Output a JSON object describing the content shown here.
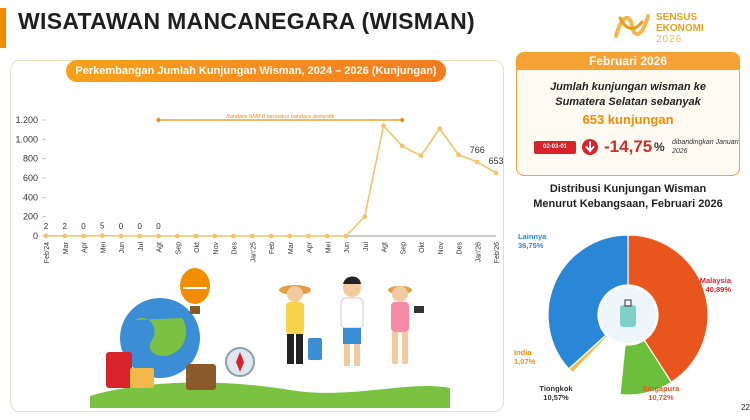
{
  "page": {
    "title": "WISATAWAN MANCANEGARA (WISMAN)",
    "page_number": "22"
  },
  "logo": {
    "line1": "SENSUS",
    "line2": "EKONOMI",
    "line3": "2026"
  },
  "colors": {
    "accent": "#f28c00",
    "line": "#f2c46b",
    "pie_malaysia": "#e8561e",
    "pie_singapura": "#6bbf3a",
    "pie_tiongkok": "#ffffff",
    "pie_india": "#f7b84a",
    "pie_lainnya": "#2a86d6",
    "decline": "#d8232a"
  },
  "summary": {
    "period": "Februari 2026",
    "text_line1": "Jumlah kunjungan wisman ke",
    "text_line2": "Sumatera Selatan sebanyak",
    "value": "653 kunjungan",
    "compare_date_label": "02-03-01",
    "change": "-14,75",
    "change_unit": "%",
    "compare_note": "dibandingkan Januari 2026",
    "icon": "arrow-down-icon"
  },
  "chart_data": [
    {
      "type": "line",
      "title": "Perkembangan Jumlah Kunjungan Wisman, 2024 – 2026 (Kunjungan)",
      "x": [
        "Feb'24",
        "Mar",
        "Apr",
        "Mei",
        "Jun",
        "Jul",
        "Agt",
        "Sep",
        "Okt",
        "Nov",
        "Des",
        "Jan'25",
        "Feb",
        "Mar",
        "Apr",
        "Mei",
        "Jun",
        "Jul",
        "Agt",
        "Sep",
        "Okt",
        "Nov",
        "Des",
        "Jan'26",
        "Feb'26"
      ],
      "series": [
        {
          "values": [
            2,
            2,
            0,
            5,
            0,
            0,
            0,
            0,
            0,
            0,
            0,
            0,
            0,
            0,
            0,
            0,
            0,
            200,
            1140,
            930,
            830,
            1110,
            840,
            766,
            653
          ]
        }
      ],
      "data_labels": [
        {
          "index": 0,
          "text": "2"
        },
        {
          "index": 1,
          "text": "2"
        },
        {
          "index": 2,
          "text": "0"
        },
        {
          "index": 3,
          "text": "5"
        },
        {
          "index": 4,
          "text": "0"
        },
        {
          "index": 5,
          "text": "0"
        },
        {
          "index": 6,
          "text": "0"
        },
        {
          "index": 23,
          "text": "766"
        },
        {
          "index": 24,
          "text": "653"
        }
      ],
      "ylim": [
        0,
        1200
      ],
      "yticks": [
        0,
        200,
        400,
        600,
        800,
        1000,
        1200
      ],
      "ytick_labels": [
        "0",
        "200",
        "400",
        "600",
        "800",
        "1.000",
        "1.200"
      ],
      "annotation": {
        "text": "Bandara SMB II berstatus bandara domestik",
        "from_index": 6,
        "to_index": 19,
        "y": 1200
      }
    },
    {
      "type": "pie",
      "title_line1": "Distribusi Kunjungan Wisman",
      "title_line2": "Menurut Kebangsaan, Februari 2026",
      "slices": [
        {
          "label": "Malaysia",
          "value": 40.89,
          "value_text": "40,89%",
          "color": "#e8561e"
        },
        {
          "label": "Singapura",
          "value": 10.72,
          "value_text": "10,72%",
          "color": "#6bbf3a"
        },
        {
          "label": "Tiongkok",
          "value": 10.57,
          "value_text": "10,57%",
          "color": "#ffffff"
        },
        {
          "label": "India",
          "value": 1.07,
          "value_text": "1,07%",
          "color": "#f7b84a"
        },
        {
          "label": "Lainnya",
          "value": 36.75,
          "value_text": "36,75%",
          "color": "#2a86d6"
        }
      ]
    }
  ]
}
